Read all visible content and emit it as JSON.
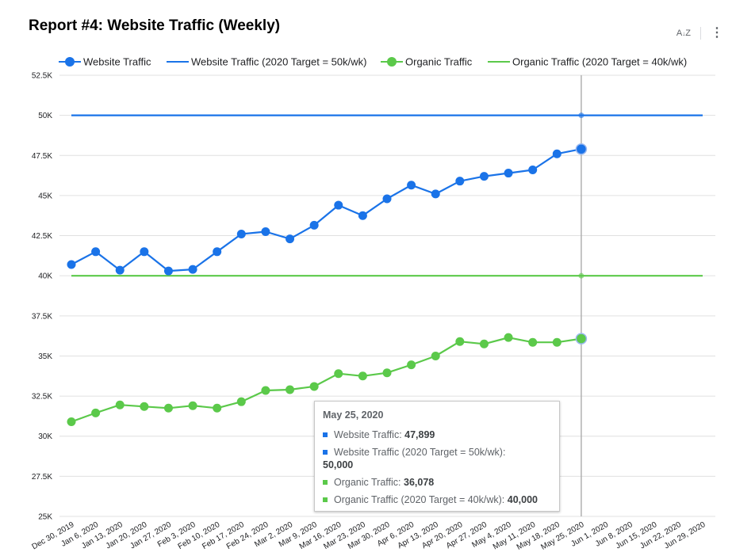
{
  "header": {
    "title": "Report #4: Website Traffic (Weekly)",
    "sort_icon": "sort-az-icon",
    "more_icon": "more-vert-icon"
  },
  "colors": {
    "website": "#1a73e8",
    "organic": "#5bc94a",
    "grid": "#e0e0e0",
    "crosshair": "#b0b0b0"
  },
  "chart_data": {
    "type": "line",
    "categories": [
      "Dec 30, 2019",
      "Jan 6, 2020",
      "Jan 13, 2020",
      "Jan 20, 2020",
      "Jan 27, 2020",
      "Feb 3, 2020",
      "Feb 10, 2020",
      "Feb 17, 2020",
      "Feb 24, 2020",
      "Mar 2, 2020",
      "Mar 9, 2020",
      "Mar 16, 2020",
      "Mar 23, 2020",
      "Mar 30, 2020",
      "Apr 6, 2020",
      "Apr 13, 2020",
      "Apr 20, 2020",
      "Apr 27, 2020",
      "May 4, 2020",
      "May 11, 2020",
      "May 18, 2020",
      "May 25, 2020",
      "Jun 1, 2020",
      "Jun 8, 2020",
      "Jun 15, 2020",
      "Jun 22, 2020",
      "Jun 29, 2020"
    ],
    "y_ticks": [
      "25K",
      "27.5K",
      "30K",
      "32.5K",
      "35K",
      "37.5K",
      "40K",
      "42.5K",
      "45K",
      "47.5K",
      "50K",
      "52.5K"
    ],
    "ylim": [
      25000,
      52500
    ],
    "grid": true,
    "legend_position": "top",
    "series": [
      {
        "name": "Website Traffic",
        "color": "#1a73e8",
        "markers": true,
        "values": [
          40700,
          41500,
          40350,
          41500,
          40300,
          40400,
          41500,
          42600,
          42750,
          42300,
          43150,
          44400,
          43750,
          44800,
          45650,
          45100,
          45900,
          46200,
          46400,
          46600,
          47600,
          47899,
          null,
          null,
          null,
          null,
          null
        ]
      },
      {
        "name": "Website Traffic (2020 Target = 50k/wk)",
        "color": "#1a73e8",
        "markers": false,
        "values": [
          50000,
          50000,
          50000,
          50000,
          50000,
          50000,
          50000,
          50000,
          50000,
          50000,
          50000,
          50000,
          50000,
          50000,
          50000,
          50000,
          50000,
          50000,
          50000,
          50000,
          50000,
          50000,
          50000,
          50000,
          50000,
          50000,
          50000
        ]
      },
      {
        "name": "Organic Traffic",
        "color": "#5bc94a",
        "markers": true,
        "values": [
          30900,
          31450,
          31950,
          31850,
          31750,
          31900,
          31750,
          32150,
          32850,
          32900,
          33100,
          33900,
          33750,
          33950,
          34450,
          35000,
          35900,
          35750,
          36150,
          35850,
          35850,
          36078,
          null,
          null,
          null,
          null,
          null
        ]
      },
      {
        "name": "Organic Traffic (2020 Target = 40k/wk)",
        "color": "#5bc94a",
        "markers": false,
        "values": [
          40000,
          40000,
          40000,
          40000,
          40000,
          40000,
          40000,
          40000,
          40000,
          40000,
          40000,
          40000,
          40000,
          40000,
          40000,
          40000,
          40000,
          40000,
          40000,
          40000,
          40000,
          40000,
          40000,
          40000,
          40000,
          40000,
          40000
        ]
      }
    ],
    "crosshair_category": "May 25, 2020"
  },
  "tooltip": {
    "date": "May 25, 2020",
    "rows": [
      {
        "label": "Website Traffic: ",
        "value": "47,899",
        "color": "#1a73e8"
      },
      {
        "label": "Website Traffic (2020 Target = 50k/wk): ",
        "value": "50,000",
        "color": "#1a73e8"
      },
      {
        "label": "Organic Traffic: ",
        "value": "36,078",
        "color": "#5bc94a"
      },
      {
        "label": "Organic Traffic (2020 Target = 40k/wk): ",
        "value": "40,000",
        "color": "#5bc94a"
      }
    ]
  }
}
